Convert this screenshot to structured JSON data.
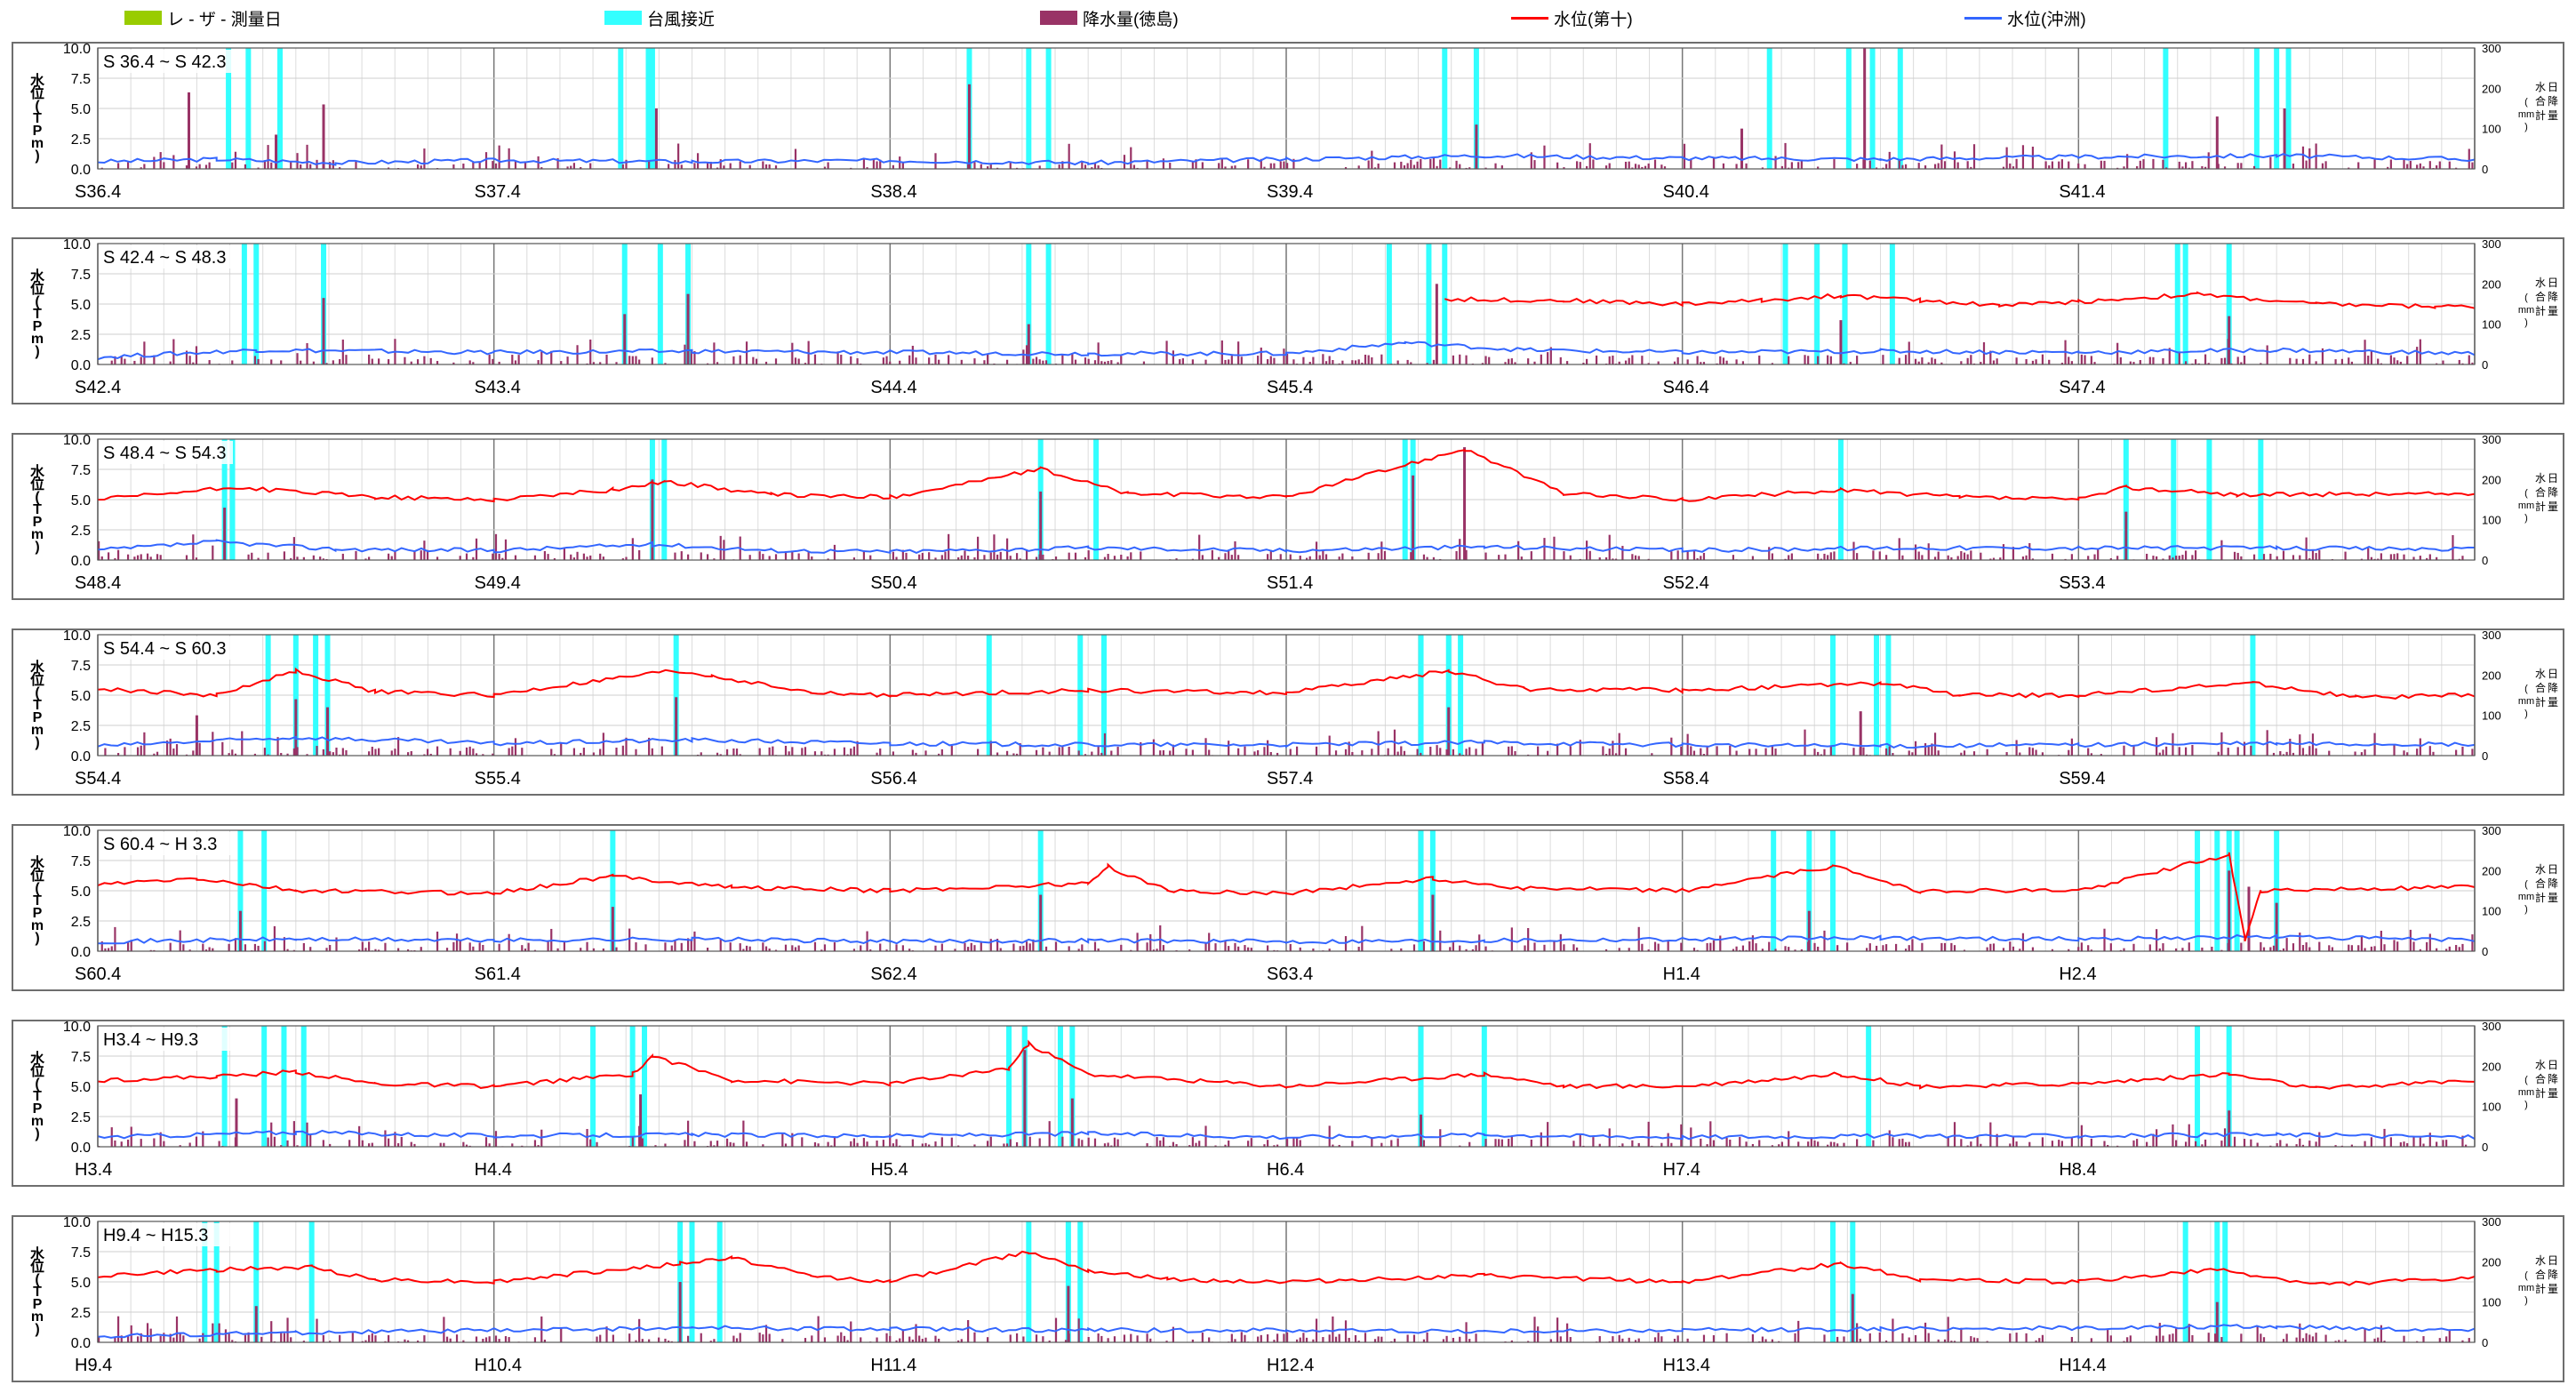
{
  "legend": [
    {
      "label": "レ - ザ - 測量日",
      "color": "#99cc00",
      "kind": "box"
    },
    {
      "label": "台風接近",
      "color": "#33ffff",
      "kind": "box"
    },
    {
      "label": "降水量(徳島)",
      "color": "#993366",
      "kind": "box"
    },
    {
      "label": "水位(第十)",
      "color": "#ff0000",
      "kind": "line"
    },
    {
      "label": "水位(沖洲)",
      "color": "#3366ff",
      "kind": "line"
    }
  ],
  "axis_labels": {
    "left": [
      "水",
      "位",
      "(",
      "T",
      "P",
      "m",
      ")"
    ],
    "right": [
      "日",
      "降",
      "水",
      "合",
      "計",
      "量",
      "(",
      "mm",
      ")"
    ]
  },
  "chart_data": [
    {
      "type": "line",
      "title": "S 36.4 ~ S 42.3",
      "x_ticks": [
        "S36.4",
        "S37.4",
        "S38.4",
        "S39.4",
        "S40.4",
        "S41.4"
      ],
      "y_ticks": [
        "10.0",
        "7.5",
        "5.0",
        "2.5",
        "0.0"
      ],
      "ylim": [
        0,
        10
      ],
      "y2_ticks": [
        "300",
        "200",
        "100",
        "0"
      ],
      "y2lim": [
        0,
        300
      ],
      "typhoon_years": [
        0.33,
        0.38,
        0.46,
        1.32,
        1.39,
        1.4,
        2.2,
        2.35,
        2.4,
        3.4,
        3.48,
        4.22,
        4.42,
        4.48,
        4.55,
        5.22,
        5.45,
        5.5,
        5.53
      ],
      "daini_level": [],
      "okinosu_level": [
        [
          0.0,
          0.6
        ],
        [
          0.3,
          0.8
        ],
        [
          0.6,
          0.5
        ],
        [
          1.0,
          0.7
        ],
        [
          1.5,
          0.6
        ],
        [
          2.0,
          0.7
        ],
        [
          2.5,
          0.5
        ],
        [
          3.0,
          0.8
        ],
        [
          3.5,
          1.1
        ],
        [
          4.0,
          0.9
        ],
        [
          4.5,
          0.8
        ],
        [
          5.0,
          1.0
        ],
        [
          5.5,
          1.1
        ],
        [
          6.0,
          0.8
        ]
      ],
      "rain_spikes": [
        [
          0.23,
          190
        ],
        [
          0.45,
          85
        ],
        [
          0.57,
          160
        ],
        [
          1.41,
          150
        ],
        [
          2.2,
          210
        ],
        [
          3.48,
          110
        ],
        [
          4.15,
          100
        ],
        [
          4.46,
          300
        ],
        [
          5.35,
          130
        ],
        [
          5.52,
          150
        ]
      ]
    },
    {
      "type": "line",
      "title": "S 42.4 ~ S 48.3",
      "x_ticks": [
        "S42.4",
        "S43.4",
        "S44.4",
        "S45.4",
        "S46.4",
        "S47.4"
      ],
      "y_ticks": [
        "10.0",
        "7.5",
        "5.0",
        "2.5",
        "0.0"
      ],
      "ylim": [
        0,
        10
      ],
      "y2_ticks": [
        "300",
        "200",
        "100",
        "0"
      ],
      "y2lim": [
        0,
        300
      ],
      "typhoon_years": [
        0.37,
        0.4,
        0.57,
        1.33,
        1.42,
        1.49,
        2.35,
        2.4,
        3.26,
        3.36,
        3.4,
        4.26,
        4.34,
        4.41,
        4.53,
        5.25,
        5.27,
        5.38
      ],
      "daini_level": [
        [
          3.4,
          5.4
        ],
        [
          3.7,
          5.3
        ],
        [
          4.0,
          5.0
        ],
        [
          4.2,
          5.3
        ],
        [
          4.4,
          5.7
        ],
        [
          4.6,
          5.3
        ],
        [
          4.8,
          4.9
        ],
        [
          5.0,
          5.2
        ],
        [
          5.3,
          5.8
        ],
        [
          5.6,
          5.0
        ],
        [
          5.9,
          4.8
        ],
        [
          6.0,
          4.8
        ]
      ],
      "okinosu_level": [
        [
          0.0,
          0.6
        ],
        [
          0.4,
          1.2
        ],
        [
          1.0,
          1.0
        ],
        [
          1.5,
          1.1
        ],
        [
          2.0,
          1.0
        ],
        [
          2.5,
          0.9
        ],
        [
          3.0,
          0.9
        ],
        [
          3.3,
          1.8
        ],
        [
          3.6,
          1.2
        ],
        [
          4.0,
          1.0
        ],
        [
          4.5,
          1.1
        ],
        [
          5.0,
          1.0
        ],
        [
          5.5,
          1.2
        ],
        [
          6.0,
          0.9
        ]
      ],
      "rain_spikes": [
        [
          0.57,
          165
        ],
        [
          1.33,
          125
        ],
        [
          1.49,
          175
        ],
        [
          2.35,
          100
        ],
        [
          3.38,
          200
        ],
        [
          4.4,
          110
        ],
        [
          5.38,
          120
        ]
      ]
    },
    {
      "type": "line",
      "title": "S 48.4 ~ S 54.3",
      "x_ticks": [
        "S48.4",
        "S49.4",
        "S50.4",
        "S51.4",
        "S52.4",
        "S53.4"
      ],
      "y_ticks": [
        "10.0",
        "7.5",
        "5.0",
        "2.5",
        "0.0"
      ],
      "ylim": [
        0,
        10
      ],
      "y2_ticks": [
        "300",
        "200",
        "100",
        "0"
      ],
      "y2lim": [
        0,
        300
      ],
      "typhoon_years": [
        0.32,
        0.34,
        1.4,
        1.43,
        2.38,
        2.52,
        3.3,
        3.32,
        4.4,
        5.12,
        5.24,
        5.33,
        5.46
      ],
      "daini_level": [
        [
          0.0,
          5.0
        ],
        [
          0.35,
          6.0
        ],
        [
          0.7,
          5.2
        ],
        [
          1.0,
          5.0
        ],
        [
          1.3,
          5.8
        ],
        [
          1.43,
          6.5
        ],
        [
          1.7,
          5.4
        ],
        [
          2.0,
          5.2
        ],
        [
          2.38,
          7.5
        ],
        [
          2.6,
          5.5
        ],
        [
          3.0,
          5.2
        ],
        [
          3.45,
          9.2
        ],
        [
          3.7,
          5.5
        ],
        [
          4.0,
          5.0
        ],
        [
          4.4,
          5.8
        ],
        [
          4.7,
          5.2
        ],
        [
          5.0,
          5.0
        ],
        [
          5.12,
          6.0
        ],
        [
          5.4,
          5.4
        ],
        [
          6.0,
          5.5
        ]
      ],
      "okinosu_level": [
        [
          0.0,
          0.8
        ],
        [
          0.3,
          1.5
        ],
        [
          0.6,
          0.9
        ],
        [
          1.0,
          0.8
        ],
        [
          1.4,
          1.3
        ],
        [
          1.7,
          0.8
        ],
        [
          2.0,
          0.7
        ],
        [
          2.5,
          1.0
        ],
        [
          3.0,
          0.8
        ],
        [
          3.5,
          1.1
        ],
        [
          4.0,
          0.8
        ],
        [
          4.5,
          1.0
        ],
        [
          5.0,
          1.0
        ],
        [
          5.5,
          1.0
        ],
        [
          6.0,
          0.9
        ]
      ],
      "rain_spikes": [
        [
          0.32,
          130
        ],
        [
          1.4,
          200
        ],
        [
          2.38,
          170
        ],
        [
          3.32,
          210
        ],
        [
          3.45,
          280
        ],
        [
          5.12,
          120
        ]
      ]
    },
    {
      "type": "line",
      "title": "S 54.4 ~ S 60.3",
      "x_ticks": [
        "S54.4",
        "S55.4",
        "S56.4",
        "S57.4",
        "S58.4",
        "S59.4"
      ],
      "y_ticks": [
        "10.0",
        "7.5",
        "5.0",
        "2.5",
        "0.0"
      ],
      "ylim": [
        0,
        10
      ],
      "y2_ticks": [
        "300",
        "200",
        "100",
        "0"
      ],
      "y2lim": [
        0,
        300
      ],
      "typhoon_years": [
        0.43,
        0.5,
        0.55,
        0.58,
        1.46,
        2.25,
        2.48,
        2.54,
        3.34,
        3.41,
        3.44,
        4.38,
        4.49,
        4.52,
        5.44
      ],
      "daini_level": [
        [
          0.0,
          5.5
        ],
        [
          0.3,
          5.0
        ],
        [
          0.5,
          7.0
        ],
        [
          0.7,
          5.3
        ],
        [
          1.0,
          5.0
        ],
        [
          1.45,
          7.0
        ],
        [
          1.55,
          6.6
        ],
        [
          1.8,
          5.2
        ],
        [
          2.0,
          5.0
        ],
        [
          2.5,
          5.4
        ],
        [
          3.0,
          5.2
        ],
        [
          3.41,
          7.0
        ],
        [
          3.6,
          5.5
        ],
        [
          4.0,
          5.4
        ],
        [
          4.5,
          6.0
        ],
        [
          4.7,
          5.0
        ],
        [
          5.0,
          5.0
        ],
        [
          5.44,
          6.0
        ],
        [
          5.7,
          4.8
        ],
        [
          6.0,
          5.0
        ]
      ],
      "okinosu_level": [
        [
          0.0,
          0.8
        ],
        [
          0.5,
          1.5
        ],
        [
          1.0,
          1.0
        ],
        [
          1.5,
          1.3
        ],
        [
          2.0,
          1.0
        ],
        [
          2.5,
          0.9
        ],
        [
          3.0,
          0.9
        ],
        [
          3.5,
          1.1
        ],
        [
          4.0,
          0.9
        ],
        [
          4.5,
          0.8
        ],
        [
          5.0,
          0.9
        ],
        [
          5.5,
          1.0
        ],
        [
          6.0,
          0.9
        ]
      ],
      "rain_spikes": [
        [
          0.25,
          100
        ],
        [
          0.5,
          140
        ],
        [
          0.58,
          120
        ],
        [
          1.46,
          145
        ],
        [
          3.41,
          120
        ],
        [
          4.45,
          110
        ]
      ]
    },
    {
      "type": "line",
      "title": "S 60.4 ~ H 3.3",
      "x_ticks": [
        "S60.4",
        "S61.4",
        "S62.4",
        "S63.4",
        "H1.4",
        "H2.4"
      ],
      "y_ticks": [
        "10.0",
        "7.5",
        "5.0",
        "2.5",
        "0.0"
      ],
      "ylim": [
        0,
        10
      ],
      "y2_ticks": [
        "300",
        "200",
        "100",
        "0"
      ],
      "y2lim": [
        0,
        300
      ],
      "typhoon_years": [
        0.36,
        0.42,
        1.3,
        2.38,
        3.34,
        3.37,
        4.23,
        4.32,
        4.38,
        5.3,
        5.35,
        5.38,
        5.4,
        5.5
      ],
      "daini_level": [
        [
          0.0,
          5.5
        ],
        [
          0.25,
          6.0
        ],
        [
          0.5,
          5.0
        ],
        [
          1.0,
          4.8
        ],
        [
          1.3,
          6.2
        ],
        [
          1.6,
          5.3
        ],
        [
          2.0,
          5.0
        ],
        [
          2.5,
          5.6
        ],
        [
          2.55,
          7.0
        ],
        [
          2.7,
          5.0
        ],
        [
          3.0,
          4.8
        ],
        [
          3.37,
          6.0
        ],
        [
          3.6,
          5.2
        ],
        [
          4.0,
          5.0
        ],
        [
          4.38,
          7.0
        ],
        [
          4.6,
          5.0
        ],
        [
          5.0,
          5.0
        ],
        [
          5.38,
          8.0
        ],
        [
          5.42,
          1.0
        ],
        [
          5.46,
          5.0
        ],
        [
          6.0,
          5.3
        ]
      ],
      "okinosu_level": [
        [
          0.0,
          0.8
        ],
        [
          0.5,
          1.0
        ],
        [
          1.0,
          0.9
        ],
        [
          1.5,
          1.0
        ],
        [
          2.0,
          0.8
        ],
        [
          2.5,
          0.9
        ],
        [
          3.0,
          0.8
        ],
        [
          3.5,
          0.9
        ],
        [
          4.0,
          1.0
        ],
        [
          4.5,
          1.1
        ],
        [
          5.0,
          1.0
        ],
        [
          5.5,
          1.2
        ],
        [
          6.0,
          0.9
        ]
      ],
      "rain_spikes": [
        [
          0.36,
          100
        ],
        [
          1.3,
          110
        ],
        [
          2.38,
          140
        ],
        [
          3.37,
          140
        ],
        [
          4.32,
          100
        ],
        [
          5.38,
          200
        ],
        [
          5.43,
          160
        ],
        [
          5.5,
          120
        ]
      ]
    },
    {
      "type": "line",
      "title": "H3.4 ~ H9.3",
      "x_ticks": [
        "H3.4",
        "H4.4",
        "H5.4",
        "H6.4",
        "H7.4",
        "H8.4"
      ],
      "y_ticks": [
        "10.0",
        "7.5",
        "5.0",
        "2.5",
        "0.0"
      ],
      "ylim": [
        0,
        10
      ],
      "y2_ticks": [
        "300",
        "200",
        "100",
        "0"
      ],
      "y2lim": [
        0,
        300
      ],
      "typhoon_years": [
        0.32,
        0.42,
        0.47,
        0.52,
        1.25,
        1.35,
        1.38,
        2.3,
        2.34,
        2.43,
        2.46,
        3.34,
        3.5,
        4.47,
        5.3,
        5.38
      ],
      "daini_level": [
        [
          0.0,
          5.5
        ],
        [
          0.3,
          5.8
        ],
        [
          0.5,
          6.2
        ],
        [
          0.7,
          5.2
        ],
        [
          1.0,
          5.0
        ],
        [
          1.35,
          6.0
        ],
        [
          1.4,
          7.5
        ],
        [
          1.6,
          5.5
        ],
        [
          2.0,
          5.2
        ],
        [
          2.3,
          6.5
        ],
        [
          2.35,
          8.5
        ],
        [
          2.5,
          6.0
        ],
        [
          3.0,
          5.0
        ],
        [
          3.5,
          6.0
        ],
        [
          3.7,
          5.0
        ],
        [
          4.0,
          5.0
        ],
        [
          4.4,
          6.0
        ],
        [
          4.6,
          5.0
        ],
        [
          5.0,
          5.2
        ],
        [
          5.38,
          6.0
        ],
        [
          5.6,
          4.8
        ],
        [
          6.0,
          5.5
        ]
      ],
      "okinosu_level": [
        [
          0.0,
          0.8
        ],
        [
          0.5,
          1.2
        ],
        [
          1.0,
          0.9
        ],
        [
          1.5,
          1.0
        ],
        [
          2.0,
          0.9
        ],
        [
          2.5,
          1.1
        ],
        [
          3.0,
          0.8
        ],
        [
          3.5,
          1.0
        ],
        [
          4.0,
          0.8
        ],
        [
          4.5,
          0.9
        ],
        [
          5.0,
          0.9
        ],
        [
          5.5,
          1.0
        ],
        [
          6.0,
          0.8
        ]
      ],
      "rain_spikes": [
        [
          0.35,
          120
        ],
        [
          1.37,
          130
        ],
        [
          2.34,
          240
        ],
        [
          2.46,
          120
        ],
        [
          3.34,
          80
        ],
        [
          5.38,
          90
        ]
      ]
    },
    {
      "type": "line",
      "title": "H9.4 ~ H15.3",
      "x_ticks": [
        "H9.4",
        "H10.4",
        "H11.4",
        "H12.4",
        "H13.4",
        "H14.4"
      ],
      "y_ticks": [
        "10.0",
        "7.5",
        "5.0",
        "2.5",
        "0.0"
      ],
      "ylim": [
        0,
        10
      ],
      "y2_ticks": [
        "300",
        "200",
        "100",
        "0"
      ],
      "y2lim": [
        0,
        300
      ],
      "typhoon_years": [
        0.27,
        0.3,
        0.4,
        0.54,
        1.47,
        1.5,
        1.57,
        2.35,
        2.45,
        2.48,
        4.38,
        4.43,
        5.27,
        5.35,
        5.37
      ],
      "daini_level": [
        [
          0.0,
          5.5
        ],
        [
          0.3,
          6.0
        ],
        [
          0.54,
          6.2
        ],
        [
          0.7,
          5.2
        ],
        [
          1.0,
          5.0
        ],
        [
          1.47,
          6.5
        ],
        [
          1.6,
          7.0
        ],
        [
          1.8,
          5.5
        ],
        [
          2.0,
          5.0
        ],
        [
          2.35,
          7.5
        ],
        [
          2.5,
          6.0
        ],
        [
          2.7,
          5.2
        ],
        [
          3.0,
          5.0
        ],
        [
          3.5,
          5.5
        ],
        [
          4.0,
          5.0
        ],
        [
          4.4,
          6.5
        ],
        [
          4.6,
          5.2
        ],
        [
          5.0,
          5.0
        ],
        [
          5.35,
          6.0
        ],
        [
          5.6,
          4.8
        ],
        [
          6.0,
          5.3
        ]
      ],
      "okinosu_level": [
        [
          0.0,
          0.5
        ],
        [
          0.5,
          0.8
        ],
        [
          1.0,
          1.0
        ],
        [
          1.5,
          1.2
        ],
        [
          2.0,
          1.1
        ],
        [
          2.5,
          1.0
        ],
        [
          3.0,
          1.0
        ],
        [
          3.5,
          0.9
        ],
        [
          4.0,
          1.0
        ],
        [
          4.5,
          1.1
        ],
        [
          5.0,
          1.2
        ],
        [
          5.5,
          1.3
        ],
        [
          6.0,
          1.0
        ]
      ],
      "rain_spikes": [
        [
          0.4,
          90
        ],
        [
          1.47,
          150
        ],
        [
          2.45,
          140
        ],
        [
          4.43,
          120
        ],
        [
          5.35,
          100
        ]
      ]
    }
  ]
}
